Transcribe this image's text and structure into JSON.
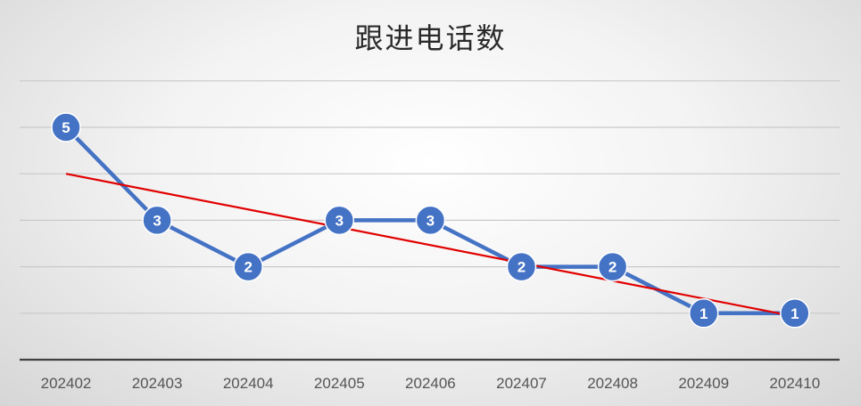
{
  "chart_data": {
    "type": "line",
    "title": "跟进电话数",
    "xlabel": "",
    "ylabel": "",
    "categories": [
      "202402",
      "202403",
      "202404",
      "202405",
      "202406",
      "202407",
      "202408",
      "202409",
      "202410"
    ],
    "series": [
      {
        "values": [
          5,
          3,
          2,
          3,
          3,
          2,
          2,
          1,
          1
        ]
      }
    ],
    "trendline": {
      "type": "linear",
      "from": 4.0,
      "to": 0.93
    },
    "ylim": [
      -1,
      6
    ],
    "y_ticks_shown": false,
    "grid": true,
    "legend": "none",
    "colors": {
      "series": "#4472C4",
      "trendline": "#E10000",
      "gridline": "#C9C9C9",
      "axis": "#404040",
      "label_text": "#FFFFFF"
    }
  }
}
